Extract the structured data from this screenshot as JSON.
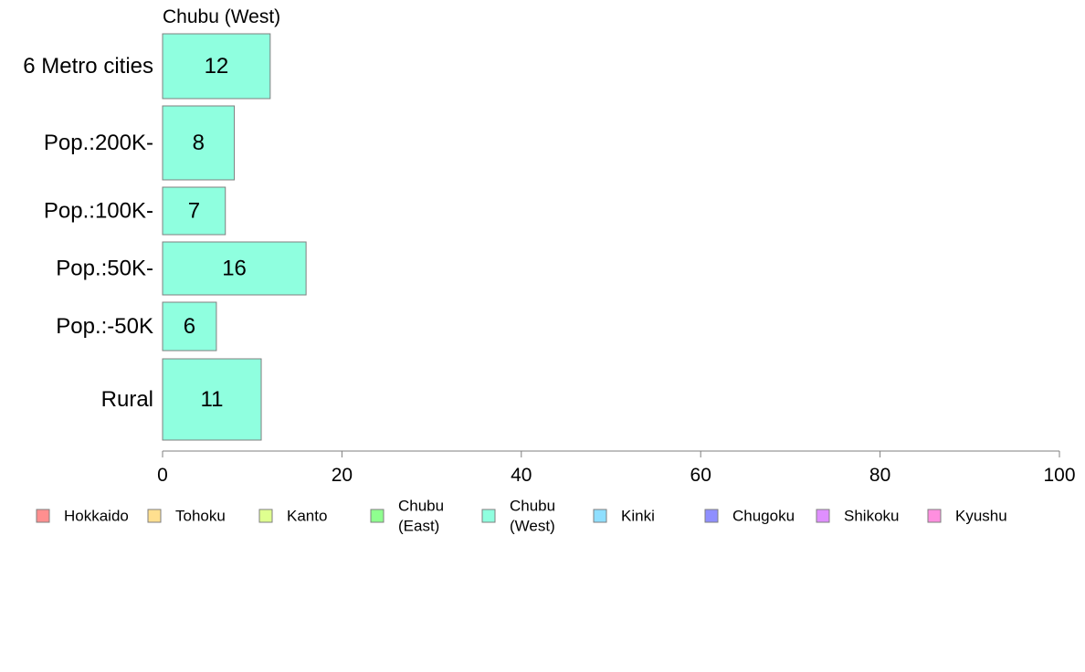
{
  "chart_data": {
    "type": "bar",
    "orientation": "horizontal",
    "title": "Chubu (West)",
    "categories": [
      "6 Metro cities",
      "Pop.:200K-",
      "Pop.:100K-",
      "Pop.:50K-",
      "Pop.:-50K",
      "Rural"
    ],
    "values": [
      12,
      8,
      7,
      16,
      6,
      11
    ],
    "bar_labels": [
      "12",
      "8",
      "7",
      "16",
      "6",
      "11"
    ],
    "bar_color": "#8fffdf",
    "xlim": [
      0,
      100
    ],
    "x_ticks": [
      "0",
      "20",
      "40",
      "60",
      "80",
      "100"
    ],
    "xlabel": "",
    "ylabel": "",
    "grid": false,
    "legend_position": "bottom",
    "legend": [
      {
        "lines": [
          "Hokkaido"
        ],
        "color": "#ff8f8f"
      },
      {
        "lines": [
          "Tohoku"
        ],
        "color": "#ffdf8f"
      },
      {
        "lines": [
          "Kanto"
        ],
        "color": "#dfff8f"
      },
      {
        "lines": [
          "Chubu",
          "(East)"
        ],
        "color": "#8fff8f"
      },
      {
        "lines": [
          "Chubu",
          "(West)"
        ],
        "color": "#8fffdf"
      },
      {
        "lines": [
          "Kinki"
        ],
        "color": "#8fdfff"
      },
      {
        "lines": [
          "Chugoku"
        ],
        "color": "#8f8fff"
      },
      {
        "lines": [
          "Shikoku"
        ],
        "color": "#df8fff"
      },
      {
        "lines": [
          "Kyushu"
        ],
        "color": "#ff8fdf"
      }
    ]
  }
}
